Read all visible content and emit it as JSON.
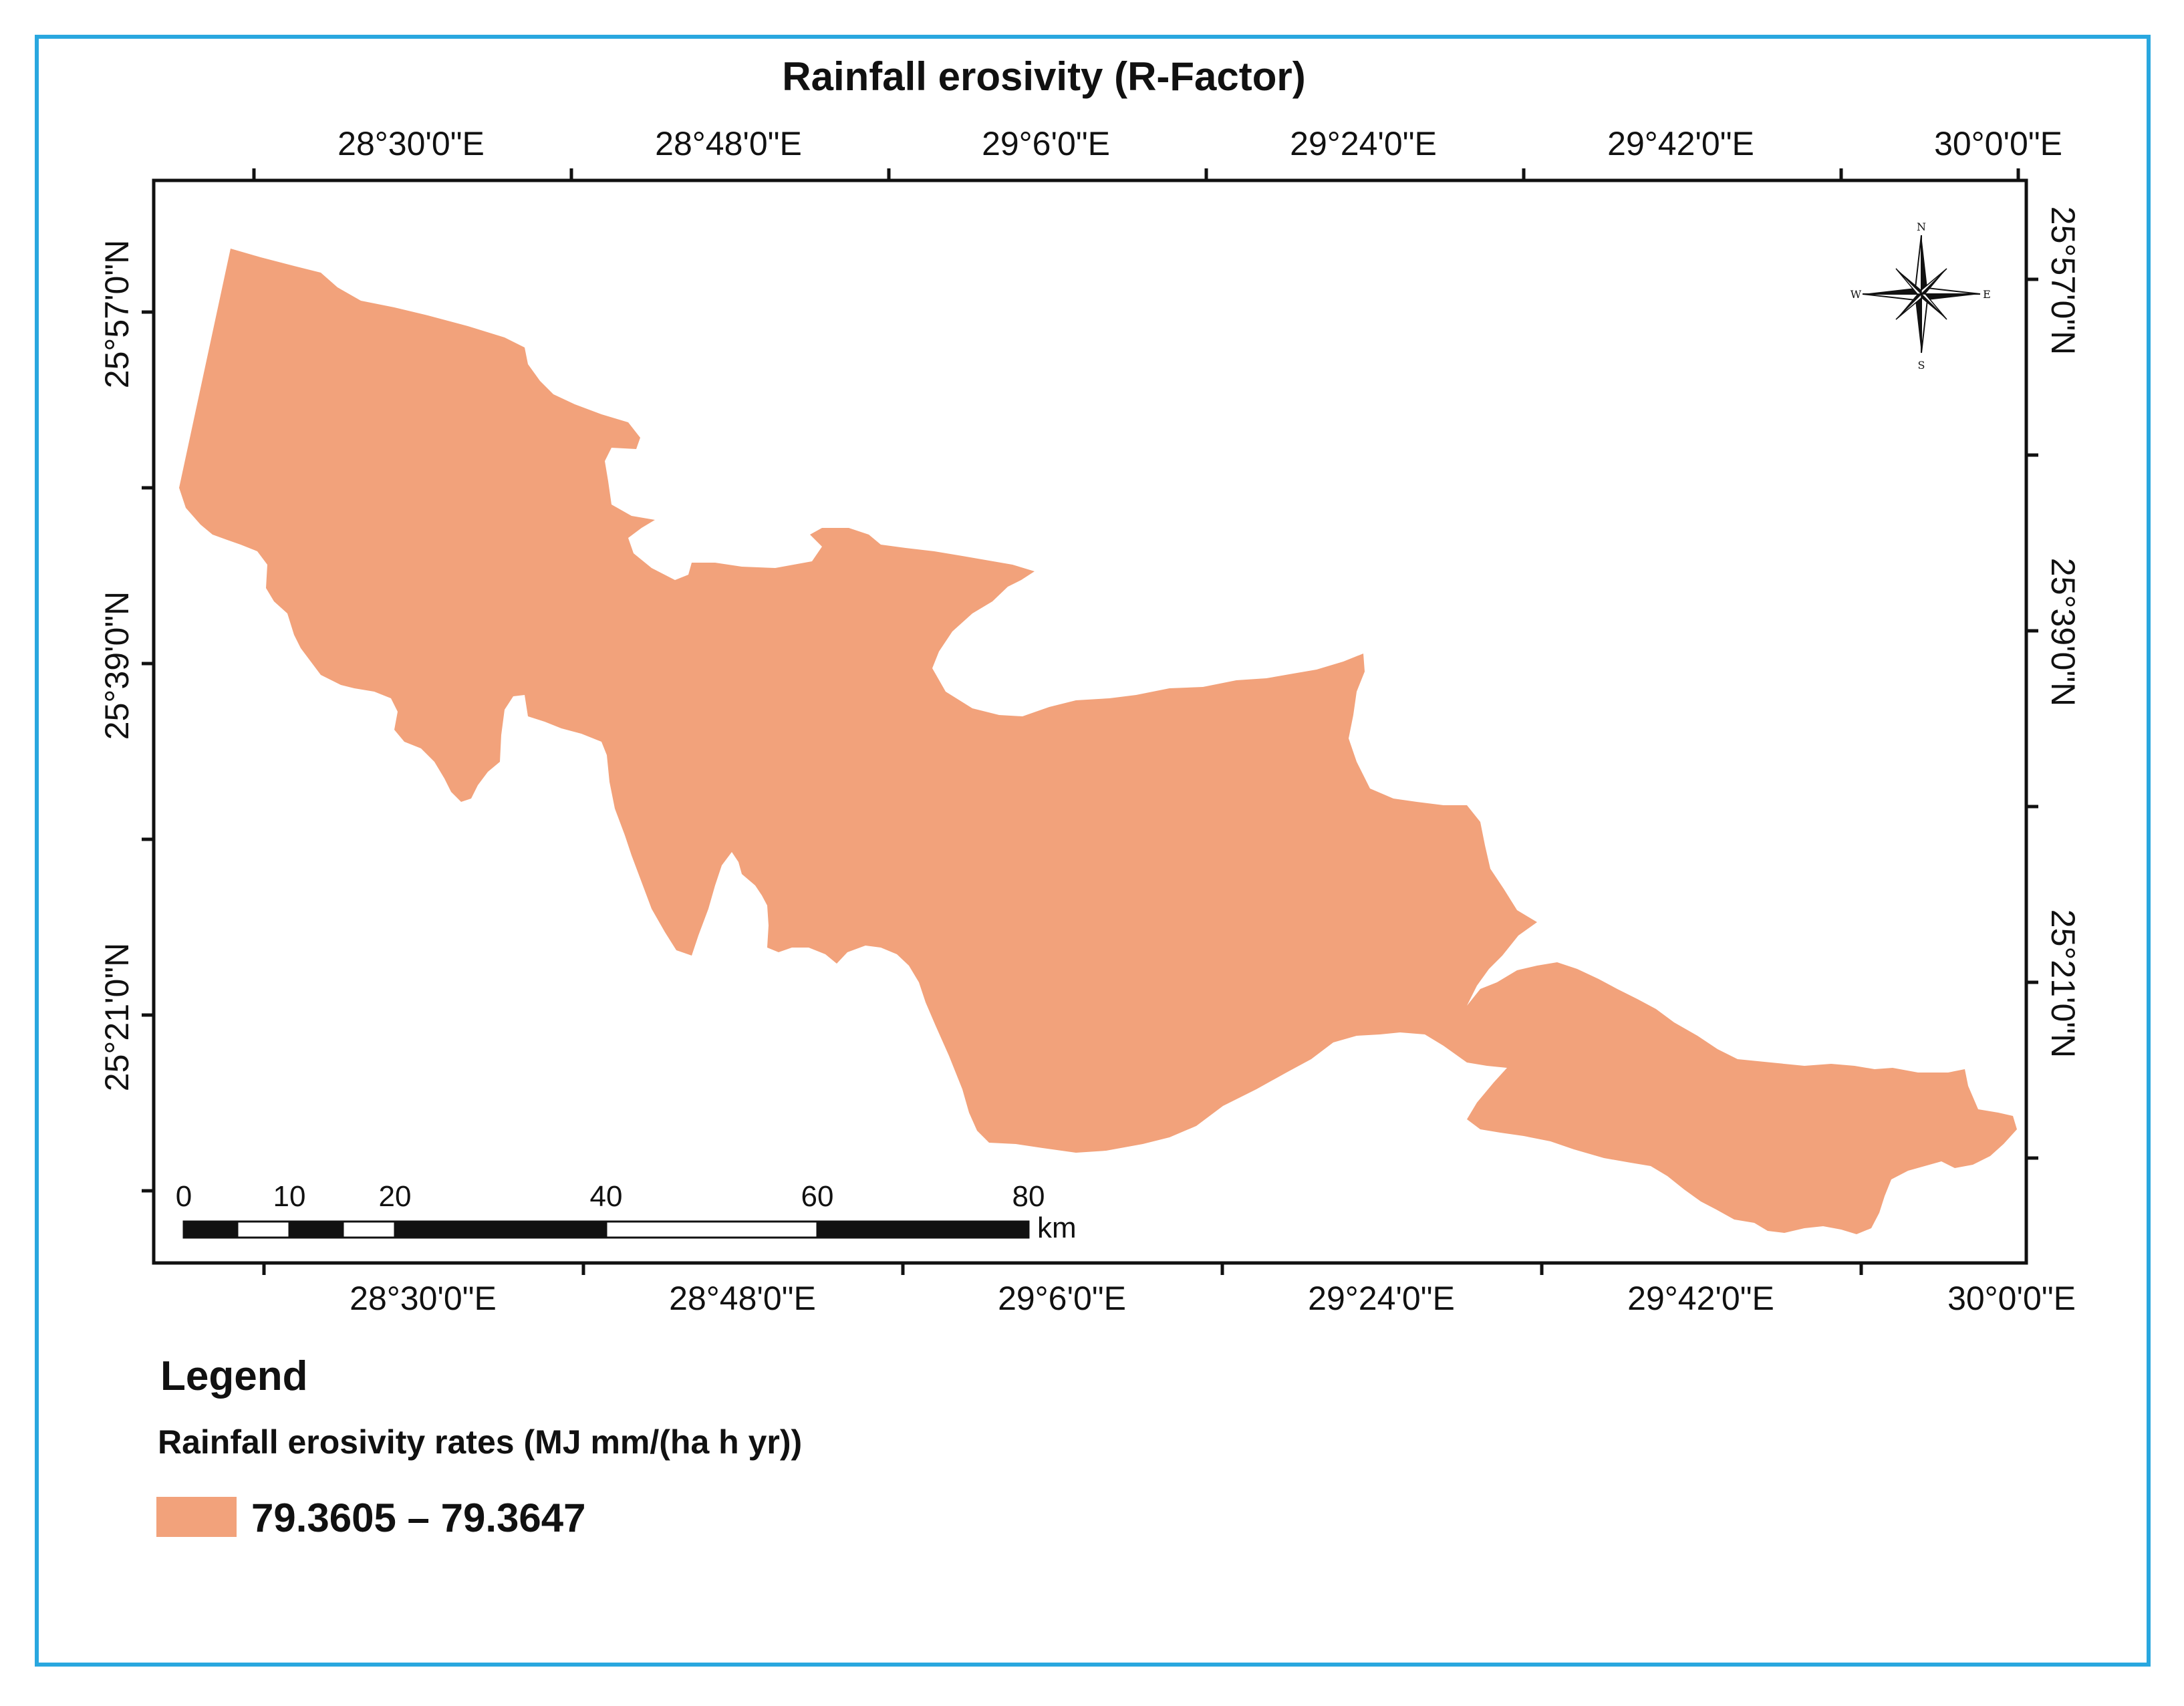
{
  "map": {
    "title": "Rainfall erosivity (R-Factor)",
    "top_lon_labels": [
      "28°30'0\"E",
      "28°48'0\"E",
      "29°6'0\"E",
      "29°24'0\"E",
      "29°42'0\"E",
      "30°0'0\"E"
    ],
    "bottom_lon_labels": [
      "28°30'0\"E",
      "28°48'0\"E",
      "29°6'0\"E",
      "29°24'0\"E",
      "29°42'0\"E",
      "30°0'0\"E"
    ],
    "left_lat_labels": [
      "25°57'0\"N",
      "25°39'0\"N",
      "25°21'0\"N"
    ],
    "right_lat_labels": [
      "25°57'0\"N",
      "25°39'0\"N",
      "25°21'0\"N"
    ],
    "region_color": "#f2a27b"
  },
  "north_arrow": {
    "n": "N",
    "s": "S",
    "e": "E",
    "w": "W"
  },
  "scale_bar": {
    "labels": [
      "0",
      "10",
      "20",
      "40",
      "60",
      "80"
    ],
    "unit": "km"
  },
  "legend": {
    "title": "Legend",
    "subtitle": "Rainfall erosivity rates (MJ mm/(ha h yr))",
    "items": [
      {
        "label": "79.3605 – 79.3647",
        "color": "#f2a27b"
      }
    ]
  }
}
